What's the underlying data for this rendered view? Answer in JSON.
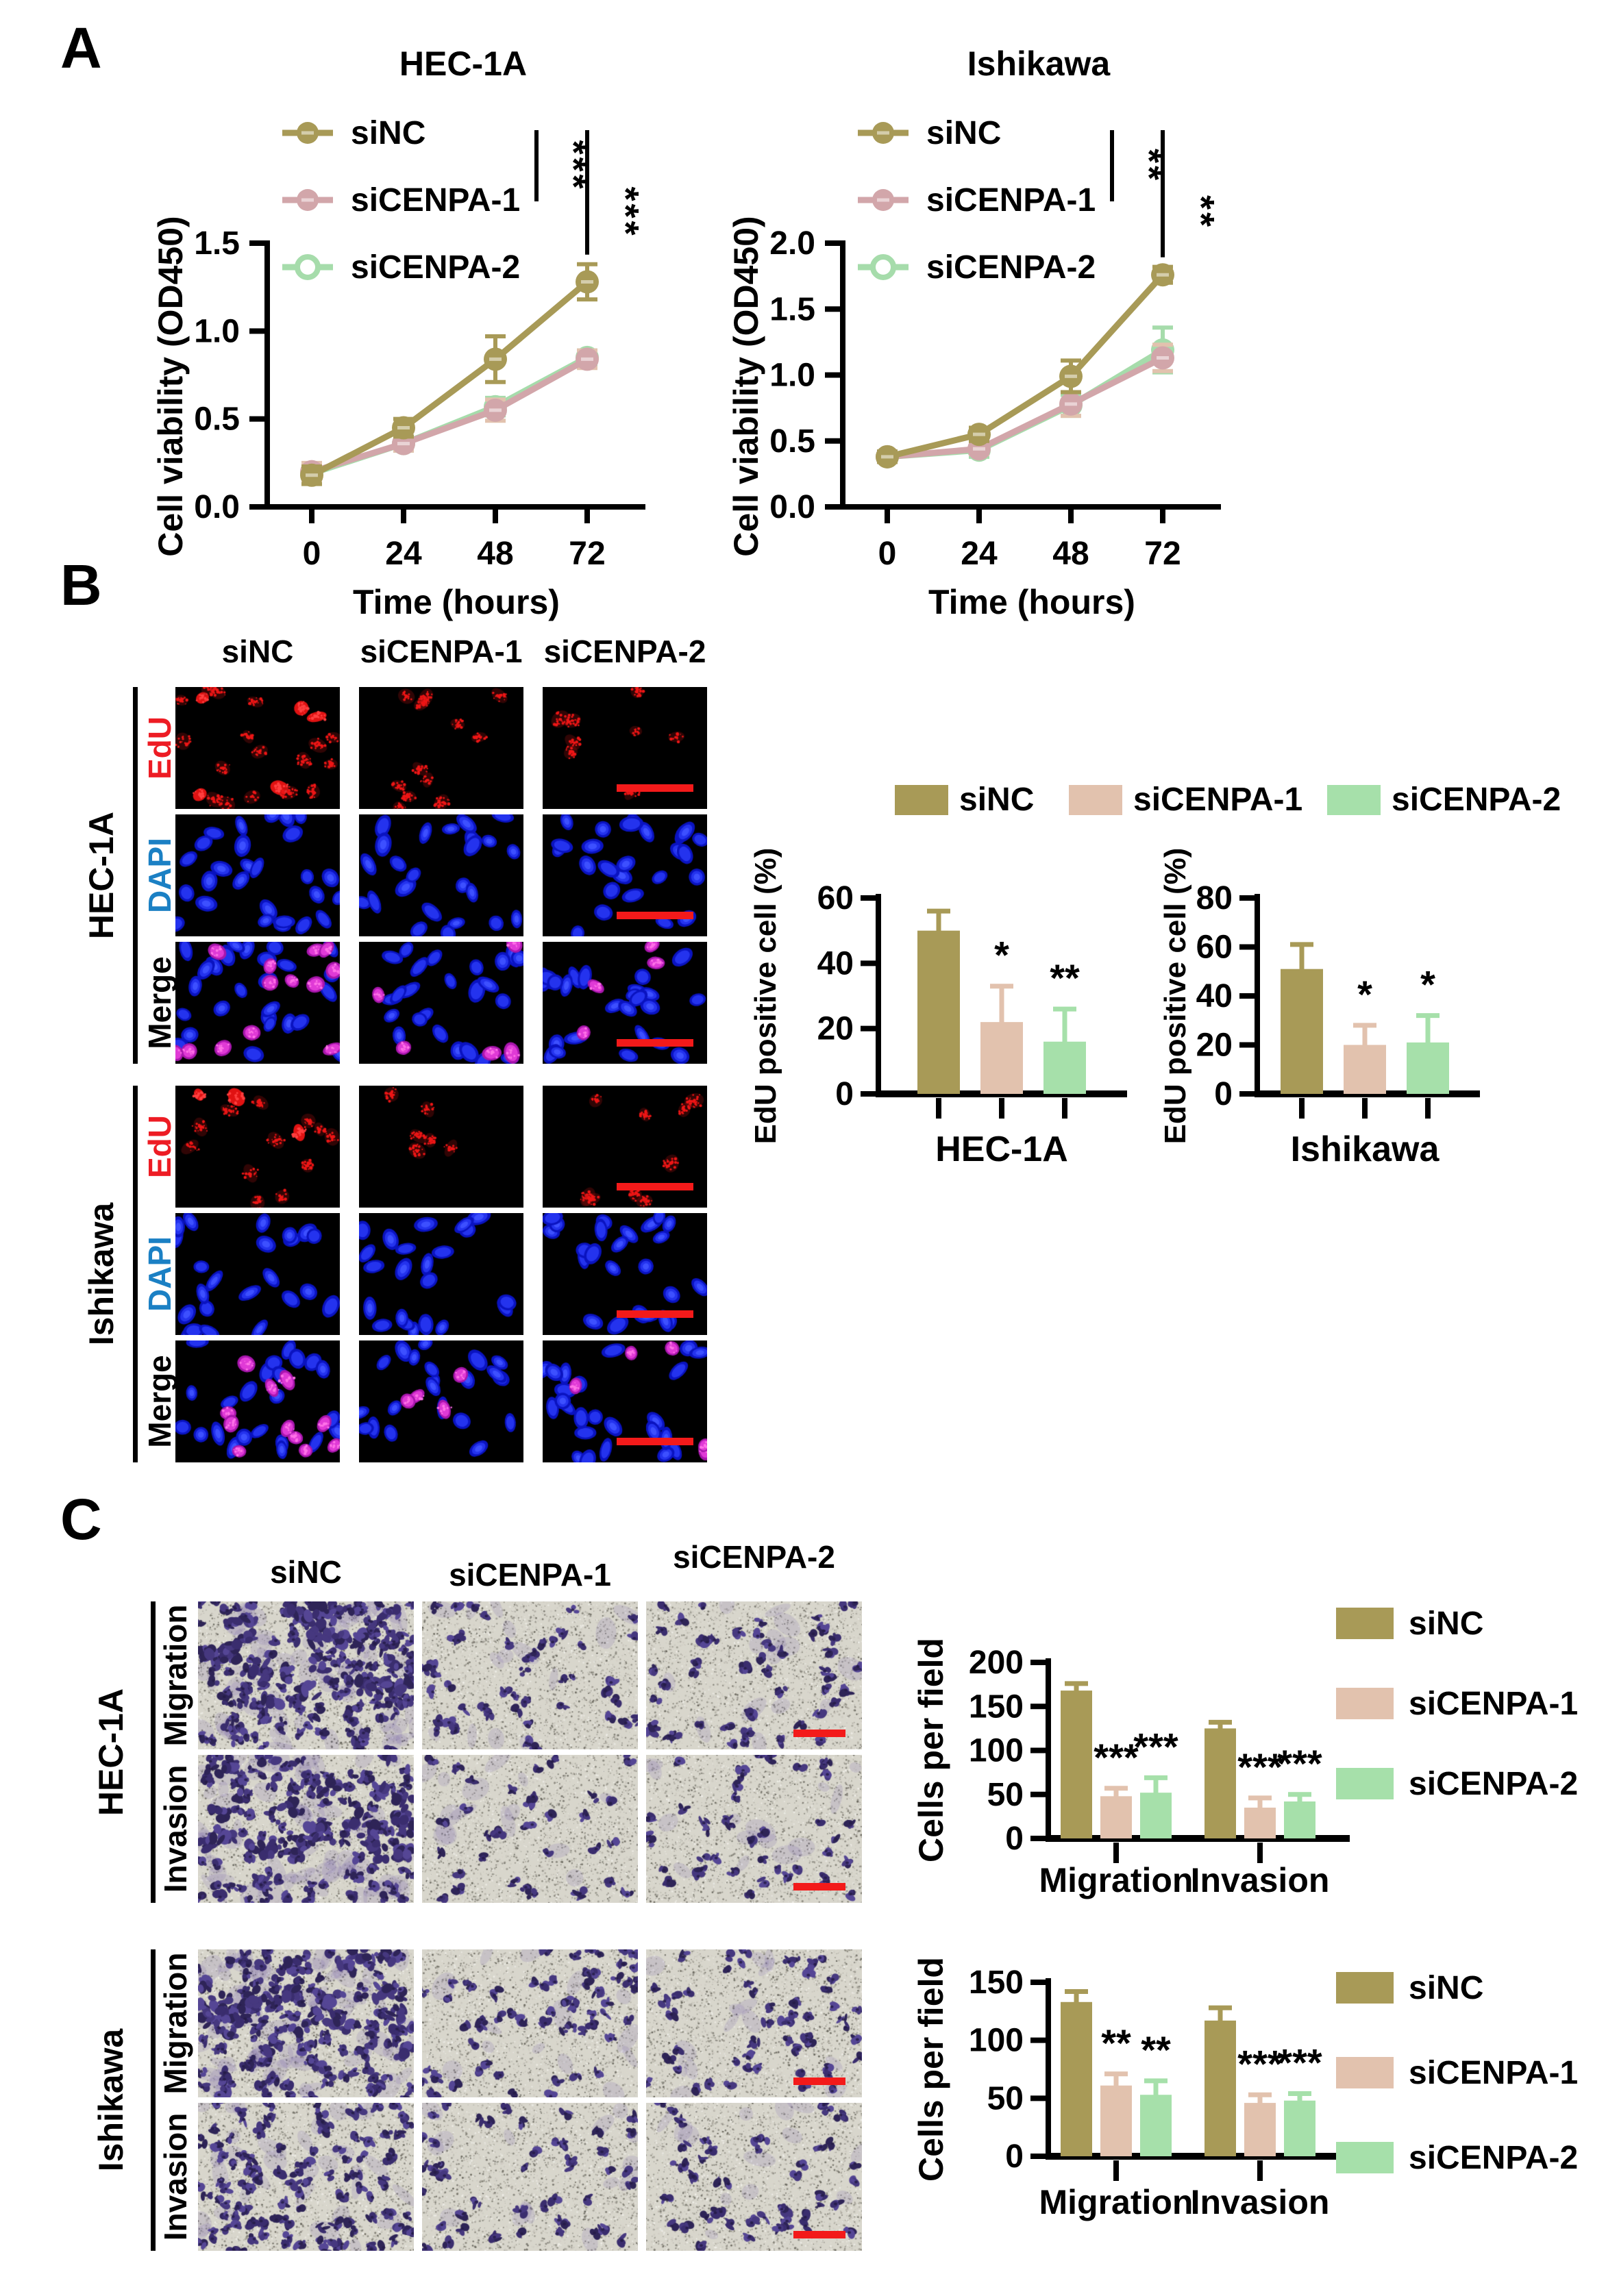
{
  "figure": {
    "background": "#ffffff"
  },
  "groups": [
    "siNC",
    "siCENPA-1",
    "siCENPA-2"
  ],
  "colors": {
    "siNC": "#a89a57",
    "siCENPA1": "#e2c2ae",
    "siCENPA2": "#a6e0aa",
    "siNC_line": "#a89a57",
    "siCENPA1_line": "#d2a6aa",
    "siCENPA2_line": "#a6dcab",
    "edu": "#ed1c24",
    "dapi": "#1b80c4",
    "merge": "#000000",
    "scalebar": "#f31a1a",
    "axis": "#000000"
  },
  "panel_a": {
    "label": "A",
    "chart_ids": [
      "a1",
      "a2"
    ]
  },
  "panel_b": {
    "label": "B",
    "col_headers": [
      "siNC",
      "siCENPA-1",
      "siCENPA-2"
    ],
    "groups": [
      {
        "name": "HEC-1A",
        "rows": [
          {
            "label": "EdU",
            "color_key": "edu",
            "cells": [
              {
                "red": 22,
                "bright": true
              },
              {
                "red": 13
              },
              {
                "red": 8
              }
            ]
          },
          {
            "label": "DAPI",
            "color_key": "dapi",
            "cells": [
              {
                "blue": 27
              },
              {
                "blue": 24
              },
              {
                "blue": 25
              }
            ]
          },
          {
            "label": "Merge",
            "color_key": "merge",
            "cells": [
              {
                "blue": 27,
                "magenta": 13
              },
              {
                "blue": 24,
                "magenta": 5
              },
              {
                "blue": 25,
                "magenta": 4
              }
            ]
          }
        ]
      },
      {
        "name": "Ishikawa",
        "rows": [
          {
            "label": "EdU",
            "color_key": "edu",
            "cells": [
              {
                "red": 15,
                "bright": true
              },
              {
                "red": 6
              },
              {
                "red": 9
              }
            ]
          },
          {
            "label": "DAPI",
            "color_key": "dapi",
            "cells": [
              {
                "blue": 23
              },
              {
                "blue": 22
              },
              {
                "blue": 24
              }
            ]
          },
          {
            "label": "Merge",
            "color_key": "merge",
            "cells": [
              {
                "blue": 23,
                "magenta": 11
              },
              {
                "blue": 22,
                "magenta": 4
              },
              {
                "blue": 24,
                "magenta": 5
              }
            ]
          }
        ]
      }
    ],
    "chart_ids": [
      "b1",
      "b2"
    ]
  },
  "panel_c": {
    "label": "C",
    "col_headers": [
      "siNC",
      "siCENPA-1",
      "siCENPA-2"
    ],
    "groups": [
      {
        "name": "HEC-1A",
        "rows": [
          {
            "label": "Migration",
            "cells": [
              170,
              48,
              52
            ]
          },
          {
            "label": "Invasion",
            "cells": [
              125,
              35,
              42
            ]
          }
        ]
      },
      {
        "name": "Ishikawa",
        "rows": [
          {
            "label": "Migration",
            "cells": [
              133,
              61,
              53
            ]
          },
          {
            "label": "Invasion",
            "cells": [
              117,
              46,
              48
            ]
          }
        ]
      }
    ],
    "chart_ids": [
      "c1",
      "c2"
    ]
  },
  "chart_data": {
    "a1": {
      "type": "line",
      "title": "HEC-1A",
      "xlabel": "Time (hours)",
      "ylabel": "Cell viability (OD450)",
      "x": [
        "0",
        "24",
        "48",
        "72"
      ],
      "ylim": [
        0,
        1.5
      ],
      "yticks": [
        "0.0",
        "0.5",
        "1.0",
        "1.5"
      ],
      "series": [
        {
          "name": "siNC",
          "color": "siNC_line",
          "marker": "filled",
          "values": [
            0.18,
            0.45,
            0.84,
            1.28
          ],
          "errors": [
            0.05,
            0.05,
            0.13,
            0.1
          ]
        },
        {
          "name": "siCENPA-1",
          "color": "siCENPA1_line",
          "err_color": "siCENPA1",
          "marker": "filled",
          "values": [
            0.2,
            0.36,
            0.55,
            0.84
          ],
          "errors": [
            0.05,
            0.04,
            0.06,
            0.05
          ]
        },
        {
          "name": "siCENPA-2",
          "color": "siCENPA2_line",
          "marker": "open",
          "values": [
            0.19,
            0.36,
            0.57,
            0.85
          ],
          "errors": [
            0.05,
            0.04,
            0.05,
            0.04
          ]
        }
      ],
      "sig": [
        "***",
        "***"
      ]
    },
    "a2": {
      "type": "line",
      "title": "Ishikawa",
      "xlabel": "Time (hours)",
      "ylabel": "Cell viability (OD450)",
      "x": [
        "0",
        "24",
        "48",
        "72"
      ],
      "ylim": [
        0,
        2.0
      ],
      "yticks": [
        "0.0",
        "0.5",
        "1.0",
        "1.5",
        "2.0"
      ],
      "series": [
        {
          "name": "siNC",
          "color": "siNC_line",
          "marker": "filled",
          "values": [
            0.38,
            0.55,
            0.99,
            1.76
          ],
          "errors": [
            0.04,
            0.05,
            0.12,
            0.06
          ]
        },
        {
          "name": "siCENPA-1",
          "color": "siCENPA1_line",
          "err_color": "siCENPA1",
          "marker": "filled",
          "values": [
            0.38,
            0.44,
            0.78,
            1.13
          ],
          "errors": [
            0.04,
            0.04,
            0.09,
            0.1
          ]
        },
        {
          "name": "siCENPA-2",
          "color": "siCENPA2_line",
          "marker": "open",
          "values": [
            0.38,
            0.43,
            0.77,
            1.19
          ],
          "errors": [
            0.04,
            0.05,
            0.08,
            0.17
          ]
        }
      ],
      "sig": [
        "**",
        "**"
      ]
    },
    "b1": {
      "type": "bar",
      "ylabel": "EdU positive cell (%)",
      "xlabel": "HEC-1A",
      "ylim": [
        0,
        60
      ],
      "yticks": [
        "0",
        "20",
        "40",
        "60"
      ],
      "categories": [
        "siNC",
        "siCENPA-1",
        "siCENPA-2"
      ],
      "groups": [
        {
          "label": "",
          "values": [
            50,
            22,
            16
          ],
          "errors": [
            6,
            11,
            10
          ],
          "sig": [
            "",
            "*",
            "**"
          ]
        }
      ]
    },
    "b2": {
      "type": "bar",
      "ylabel": "EdU positive cell (%)",
      "xlabel": "Ishikawa",
      "ylim": [
        0,
        80
      ],
      "yticks": [
        "0",
        "20",
        "40",
        "60",
        "80"
      ],
      "categories": [
        "siNC",
        "siCENPA-1",
        "siCENPA-2"
      ],
      "groups": [
        {
          "label": "",
          "values": [
            51,
            20,
            21
          ],
          "errors": [
            10,
            8,
            11
          ],
          "sig": [
            "",
            "*",
            "*"
          ]
        }
      ]
    },
    "c1": {
      "type": "bar",
      "ylabel": "Cells per field",
      "xlabel": "",
      "ylim": [
        0,
        200
      ],
      "yticks": [
        "0",
        "50",
        "100",
        "150",
        "200"
      ],
      "legend": "right",
      "groups": [
        {
          "label": "Migration",
          "values": [
            168,
            48,
            52
          ],
          "errors": [
            8,
            9,
            17
          ],
          "sig": [
            "",
            "***",
            "***"
          ]
        },
        {
          "label": "Invasion",
          "values": [
            125,
            35,
            42
          ],
          "errors": [
            7,
            11,
            8
          ],
          "sig": [
            "",
            "***",
            "***"
          ]
        }
      ]
    },
    "c2": {
      "type": "bar",
      "ylabel": "Cells per field",
      "xlabel": "",
      "ylim": [
        0,
        150
      ],
      "yticks": [
        "0",
        "50",
        "100",
        "150"
      ],
      "legend": "right",
      "groups": [
        {
          "label": "Migration",
          "values": [
            133,
            61,
            53
          ],
          "errors": [
            9,
            10,
            12
          ],
          "sig": [
            "",
            "**",
            "**"
          ]
        },
        {
          "label": "Invasion",
          "values": [
            117,
            46,
            48
          ],
          "errors": [
            11,
            7,
            6
          ],
          "sig": [
            "",
            "***",
            "***"
          ]
        }
      ]
    }
  }
}
